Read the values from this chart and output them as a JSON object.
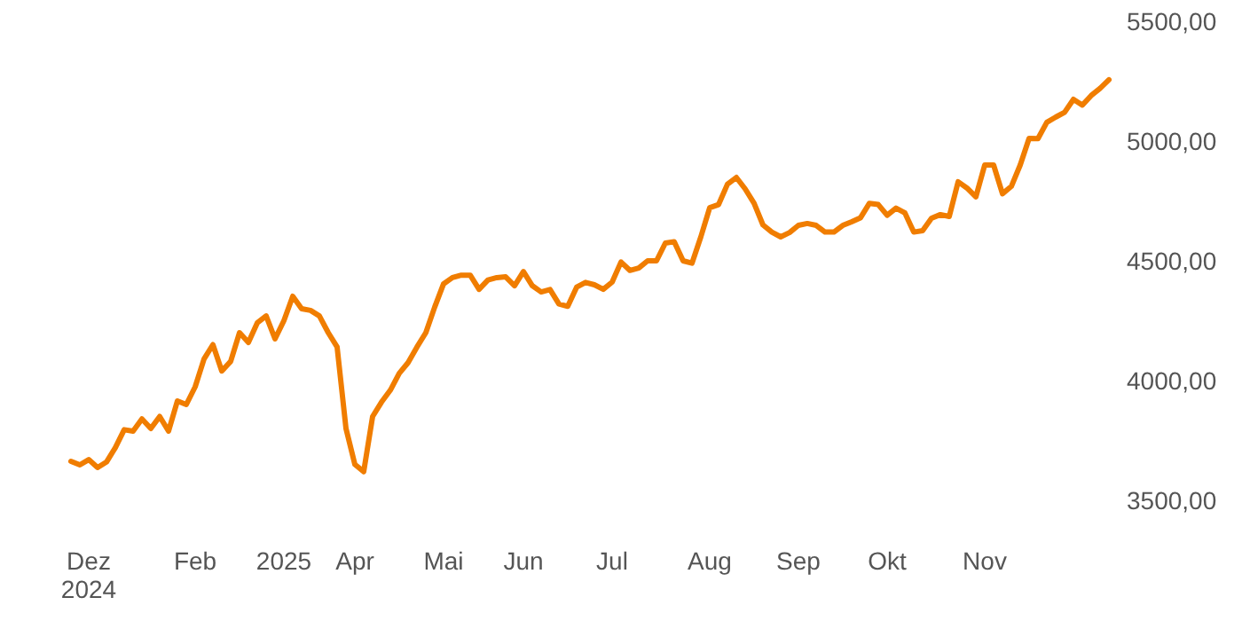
{
  "chart_data": {
    "type": "line",
    "categories": [
      null,
      null,
      "Dez\n2024",
      null,
      null,
      null,
      null,
      null,
      null,
      null,
      null,
      null,
      null,
      null,
      "Feb",
      null,
      null,
      null,
      null,
      null,
      null,
      null,
      null,
      null,
      "2025",
      null,
      null,
      null,
      null,
      null,
      null,
      null,
      "Apr",
      null,
      null,
      null,
      null,
      null,
      null,
      null,
      null,
      null,
      "Mai",
      null,
      null,
      null,
      null,
      null,
      null,
      null,
      null,
      "Jun",
      null,
      null,
      null,
      null,
      null,
      null,
      null,
      null,
      null,
      "Jul",
      null,
      null,
      null,
      null,
      null,
      null,
      null,
      null,
      null,
      null,
      "Aug",
      null,
      null,
      null,
      null,
      null,
      null,
      null,
      null,
      null,
      "Sep",
      null,
      null,
      null,
      null,
      null,
      null,
      null,
      null,
      null,
      "Okt",
      null,
      null,
      null,
      null,
      null,
      null,
      null,
      null,
      null,
      null,
      "Nov",
      null,
      null,
      null,
      null,
      null,
      null,
      null,
      null,
      null,
      null,
      null,
      null,
      null,
      null
    ],
    "series": [
      {
        "color": "#f07d00",
        "values": [
          3663,
          3648,
          3670,
          3637,
          3660,
          3720,
          3795,
          3789,
          3840,
          3800,
          3850,
          3789,
          3915,
          3900,
          3974,
          4090,
          4150,
          4040,
          4080,
          4200,
          4159,
          4241,
          4270,
          4174,
          4250,
          4352,
          4300,
          4293,
          4270,
          4200,
          4140,
          3800,
          3650,
          3620,
          3850,
          3910,
          3960,
          4030,
          4075,
          4140,
          4200,
          4307,
          4404,
          4430,
          4440,
          4440,
          4381,
          4420,
          4430,
          4433,
          4396,
          4455,
          4396,
          4370,
          4380,
          4320,
          4310,
          4390,
          4410,
          4400,
          4381,
          4411,
          4495,
          4460,
          4470,
          4500,
          4500,
          4574,
          4580,
          4500,
          4490,
          4600,
          4722,
          4735,
          4820,
          4848,
          4800,
          4740,
          4650,
          4620,
          4600,
          4618,
          4648,
          4656,
          4648,
          4620,
          4620,
          4648,
          4663,
          4680,
          4740,
          4735,
          4690,
          4720,
          4700,
          4620,
          4626,
          4678,
          4693,
          4685,
          4830,
          4804,
          4767,
          4900,
          4900,
          4780,
          4811,
          4900,
          5011,
          5010,
          5078,
          5100,
          5120,
          5174,
          5150,
          5190,
          5220,
          5256
        ]
      }
    ],
    "ylim": [
      3500,
      5500
    ],
    "yticks": [
      {
        "value": 3500,
        "label": "3500,00"
      },
      {
        "value": 4000,
        "label": "4000,00"
      },
      {
        "value": 4500,
        "label": "4500,00"
      },
      {
        "value": 5000,
        "label": "5000,00"
      },
      {
        "value": 5500,
        "label": "5500,00"
      }
    ],
    "marker": "none",
    "line_style": "solid"
  }
}
